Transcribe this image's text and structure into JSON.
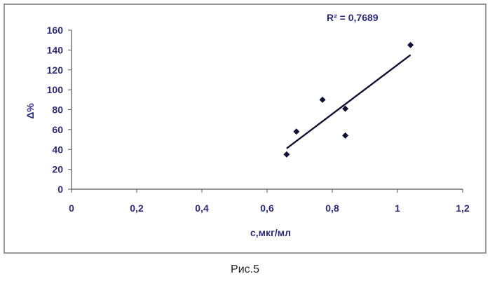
{
  "chart_data": {
    "type": "scatter",
    "xlabel": "c,мкг/мл",
    "ylabel": "Δ%",
    "xlim": [
      0,
      1.2
    ],
    "ylim": [
      0,
      160
    ],
    "xticks": [
      "0",
      "0,2",
      "0,4",
      "0,6",
      "0,8",
      "1",
      "1,2"
    ],
    "yticks": [
      "0",
      "20",
      "40",
      "60",
      "80",
      "100",
      "120",
      "140",
      "160"
    ],
    "grid": false,
    "legend": "none",
    "points": [
      {
        "x": 0.66,
        "y": 35
      },
      {
        "x": 0.69,
        "y": 58
      },
      {
        "x": 0.77,
        "y": 90
      },
      {
        "x": 0.84,
        "y": 81
      },
      {
        "x": 0.84,
        "y": 54
      },
      {
        "x": 1.04,
        "y": 145
      }
    ],
    "trendline": {
      "type": "linear",
      "x": [
        0.66,
        1.04
      ],
      "y": [
        41,
        135
      ]
    },
    "annotation": "R² = 0,7689",
    "colors": {
      "text": "#2b2b7a",
      "marker": "#111133",
      "axis": "#555555"
    }
  },
  "caption": "Рис.5"
}
